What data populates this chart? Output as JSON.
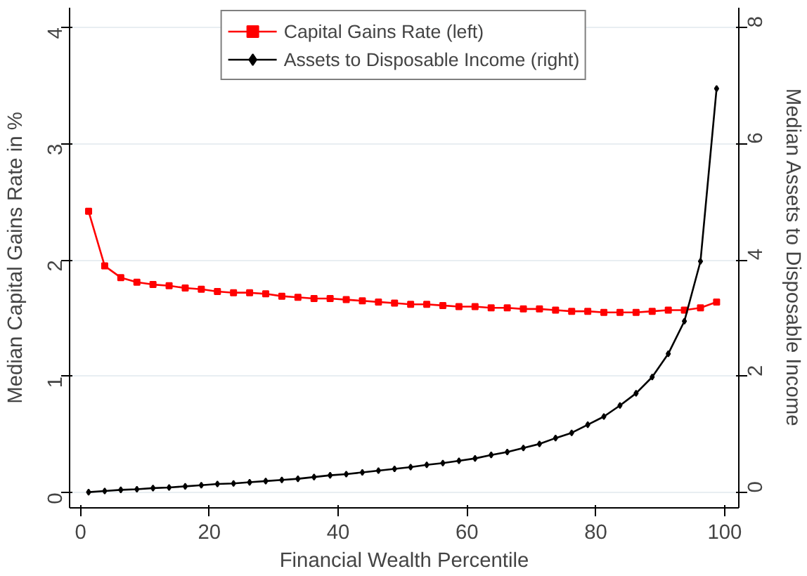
{
  "chart_data": {
    "type": "line",
    "xlabel": "Financial Wealth Percentile",
    "ylabel": "Median Capital Gains Rate in %",
    "y2label": "Median Assets to Disposable Income",
    "x": [
      1.25,
      3.75,
      6.25,
      8.75,
      11.25,
      13.75,
      16.25,
      18.75,
      21.25,
      23.75,
      26.25,
      28.75,
      31.25,
      33.75,
      36.25,
      38.75,
      41.25,
      43.75,
      46.25,
      48.75,
      51.25,
      53.75,
      56.25,
      58.75,
      61.25,
      63.75,
      66.25,
      68.75,
      71.25,
      73.75,
      76.25,
      78.75,
      81.25,
      83.75,
      86.25,
      88.75,
      91.25,
      93.75,
      96.25,
      98.75
    ],
    "series": [
      {
        "name": "Capital Gains Rate (left)",
        "color": "#ff0000",
        "marker": "square",
        "values": [
          2.42,
          1.95,
          1.85,
          1.81,
          1.79,
          1.78,
          1.76,
          1.75,
          1.73,
          1.72,
          1.72,
          1.71,
          1.69,
          1.68,
          1.67,
          1.67,
          1.66,
          1.65,
          1.64,
          1.63,
          1.62,
          1.62,
          1.61,
          1.6,
          1.6,
          1.59,
          1.59,
          1.58,
          1.58,
          1.57,
          1.56,
          1.56,
          1.55,
          1.55,
          1.55,
          1.56,
          1.57,
          1.57,
          1.59,
          1.64
        ]
      },
      {
        "name": "Assets to Disposable Income (right)",
        "color": "#000000",
        "marker": "diamond",
        "axis": "y2",
        "values": [
          0.01,
          0.03,
          0.05,
          0.06,
          0.08,
          0.09,
          0.11,
          0.13,
          0.15,
          0.16,
          0.18,
          0.2,
          0.22,
          0.24,
          0.27,
          0.3,
          0.32,
          0.35,
          0.38,
          0.41,
          0.44,
          0.48,
          0.51,
          0.55,
          0.59,
          0.65,
          0.7,
          0.77,
          0.84,
          0.94,
          1.03,
          1.17,
          1.31,
          1.5,
          1.71,
          1.99,
          2.39,
          2.95,
          3.98,
          6.95
        ]
      }
    ],
    "xlim": [
      -1.7,
      102.2
    ],
    "xticks": [
      0,
      20,
      40,
      60,
      80,
      100
    ],
    "ylim": [
      -0.13,
      4.17
    ],
    "yticks": [
      0,
      1,
      2,
      3,
      4
    ],
    "y2lim": [
      -0.26,
      8.34
    ],
    "y2ticks": [
      0,
      2,
      4,
      6,
      8
    ],
    "grid": "y",
    "legend": "top",
    "line_style": "solid"
  }
}
